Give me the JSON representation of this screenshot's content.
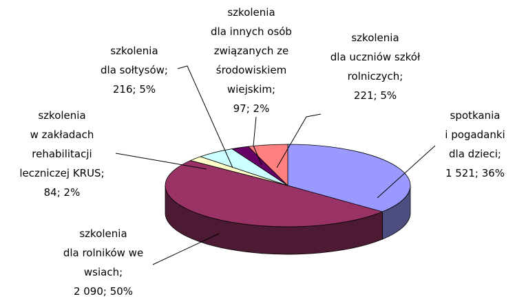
{
  "chart_data": {
    "type": "pie3d",
    "categories": [
      "spotkania\ni pogadanki\ndla dzieci;",
      "szkolenia\ndla rolników we\nwsiach;",
      "szkolenia\nw zakładach\nrehabilitacji\nleczniczej  KRUS;",
      "szkolenia\ndla sołtysów;",
      "szkolenia\ndla innych osób\nzwiązanych ze\nśrodowiskiem\nwiejskim;",
      "szkolenia\ndla uczniów szkół\nrolniczych;"
    ],
    "values": [
      1521,
      2090,
      84,
      216,
      97,
      221
    ],
    "value_labels": [
      "1 521; 36%",
      "2 090; 50%",
      "84; 2%",
      "216; 5%",
      "97; 2%",
      "221; 5%"
    ],
    "colors": [
      "#9999ff",
      "#993366",
      "#ffffcc",
      "#ccffff",
      "#660066",
      "#ff8080"
    ]
  }
}
